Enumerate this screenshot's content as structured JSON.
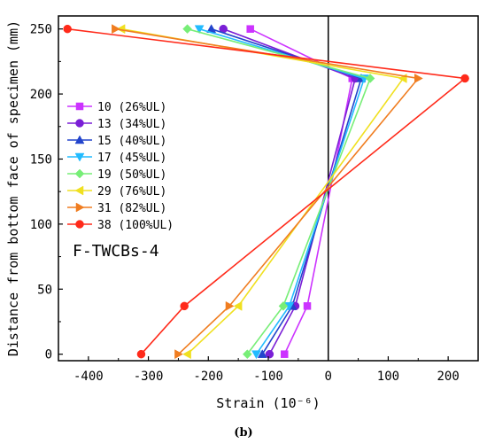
{
  "chart_data": {
    "type": "line",
    "title": "",
    "xlabel": "Strain (10⁻⁶)",
    "ylabel": "Distance from bottom face of specimen (mm)",
    "xlim": [
      -450,
      250
    ],
    "ylim": [
      -5,
      260
    ],
    "xticks": [
      -400,
      -300,
      -200,
      -100,
      0,
      100,
      200
    ],
    "yticks": [
      0,
      50,
      100,
      150,
      200,
      250
    ],
    "grid": false,
    "legend": "top-left",
    "annotation": "F-TWCBs-4",
    "caption": "(b)",
    "y": [
      250,
      212,
      37,
      0
    ],
    "series": [
      {
        "name": "10 (26%UL)",
        "marker": "square",
        "color": "#cc33ff",
        "x": [
          -130,
          40,
          -35,
          -73
        ]
      },
      {
        "name": "13 (34%UL)",
        "marker": "circle",
        "color": "#7a1fd6",
        "x": [
          -175,
          45,
          -55,
          -98
        ]
      },
      {
        "name": "15 (40%UL)",
        "marker": "triangle-up",
        "color": "#2244cc",
        "x": [
          -195,
          55,
          -60,
          -110
        ]
      },
      {
        "name": "17 (45%UL)",
        "marker": "triangle-down",
        "color": "#22bbff",
        "x": [
          -215,
          60,
          -65,
          -120
        ]
      },
      {
        "name": "19 (50%UL)",
        "marker": "diamond",
        "color": "#77ee77",
        "x": [
          -235,
          70,
          -75,
          -135
        ]
      },
      {
        "name": "29 (76%UL)",
        "marker": "triangle-left",
        "color": "#f0e020",
        "x": [
          -345,
          125,
          -150,
          -235
        ]
      },
      {
        "name": "31 (82%UL)",
        "marker": "triangle-right",
        "color": "#f07d20",
        "x": [
          -355,
          150,
          -165,
          -250
        ]
      },
      {
        "name": "38 (100%UL)",
        "marker": "circle",
        "color": "#ff2a1a",
        "x": [
          -435,
          228,
          -240,
          -312
        ]
      }
    ]
  }
}
